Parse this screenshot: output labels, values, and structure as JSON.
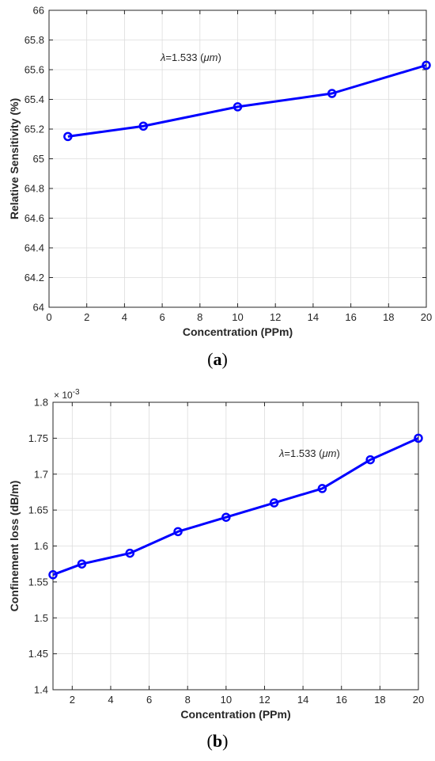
{
  "colors": {
    "line": "#0000ff",
    "grid": "#dcdcdc",
    "axis": "#262626"
  },
  "chart_data": [
    {
      "type": "line",
      "panel_label": "a",
      "xlabel": "Concentration (PPm)",
      "ylabel": "Relative Sensitivity (%)",
      "annotation": {
        "lambda": "λ",
        "value": "=1.533 (",
        "unit": "μm",
        "close": ")"
      },
      "xlim": [
        0,
        20
      ],
      "ylim": [
        64,
        66
      ],
      "grid": true,
      "x_ticks": [
        0,
        2,
        4,
        6,
        8,
        10,
        12,
        14,
        16,
        18,
        20
      ],
      "y_ticks": [
        64,
        64.2,
        64.4,
        64.6,
        64.8,
        65,
        65.2,
        65.4,
        65.6,
        65.8,
        66
      ],
      "x_tick_labels": [
        "0",
        "2",
        "4",
        "6",
        "8",
        "10",
        "12",
        "14",
        "16",
        "18",
        "20"
      ],
      "y_tick_labels": [
        "64",
        "64.2",
        "64.4",
        "64.6",
        "64.8",
        "65",
        "65.2",
        "65.4",
        "65.6",
        "65.8",
        "66"
      ],
      "series": [
        {
          "x": [
            1,
            5,
            10,
            15,
            20
          ],
          "y": [
            65.15,
            65.22,
            65.35,
            65.44,
            65.63
          ],
          "marker": "circle"
        }
      ]
    },
    {
      "type": "line",
      "panel_label": "b",
      "xlabel": "Concentration (PPm)",
      "ylabel": "Confinement loss (dB/m)",
      "annotation": {
        "lambda": "λ",
        "value": "=1.533 (",
        "unit": "μm",
        "close": ")"
      },
      "y_multiplier": {
        "base": "× 10",
        "exponent": "-3"
      },
      "xlim": [
        1,
        20
      ],
      "ylim": [
        1.4,
        1.8
      ],
      "grid": true,
      "x_ticks": [
        2,
        4,
        6,
        8,
        10,
        12,
        14,
        16,
        18,
        20
      ],
      "y_ticks": [
        1.4,
        1.45,
        1.5,
        1.55,
        1.6,
        1.65,
        1.7,
        1.75,
        1.8
      ],
      "x_tick_labels": [
        "2",
        "4",
        "6",
        "8",
        "10",
        "12",
        "14",
        "16",
        "18",
        "20"
      ],
      "y_tick_labels": [
        "1.4",
        "1.45",
        "1.5",
        "1.55",
        "1.6",
        "1.65",
        "1.7",
        "1.75",
        "1.8"
      ],
      "series": [
        {
          "x": [
            1,
            2.5,
            5,
            7.5,
            10,
            12.5,
            15,
            17.5,
            20
          ],
          "y": [
            1.56,
            1.575,
            1.59,
            1.62,
            1.64,
            1.66,
            1.68,
            1.72,
            1.75
          ],
          "marker": "circle"
        }
      ]
    }
  ]
}
